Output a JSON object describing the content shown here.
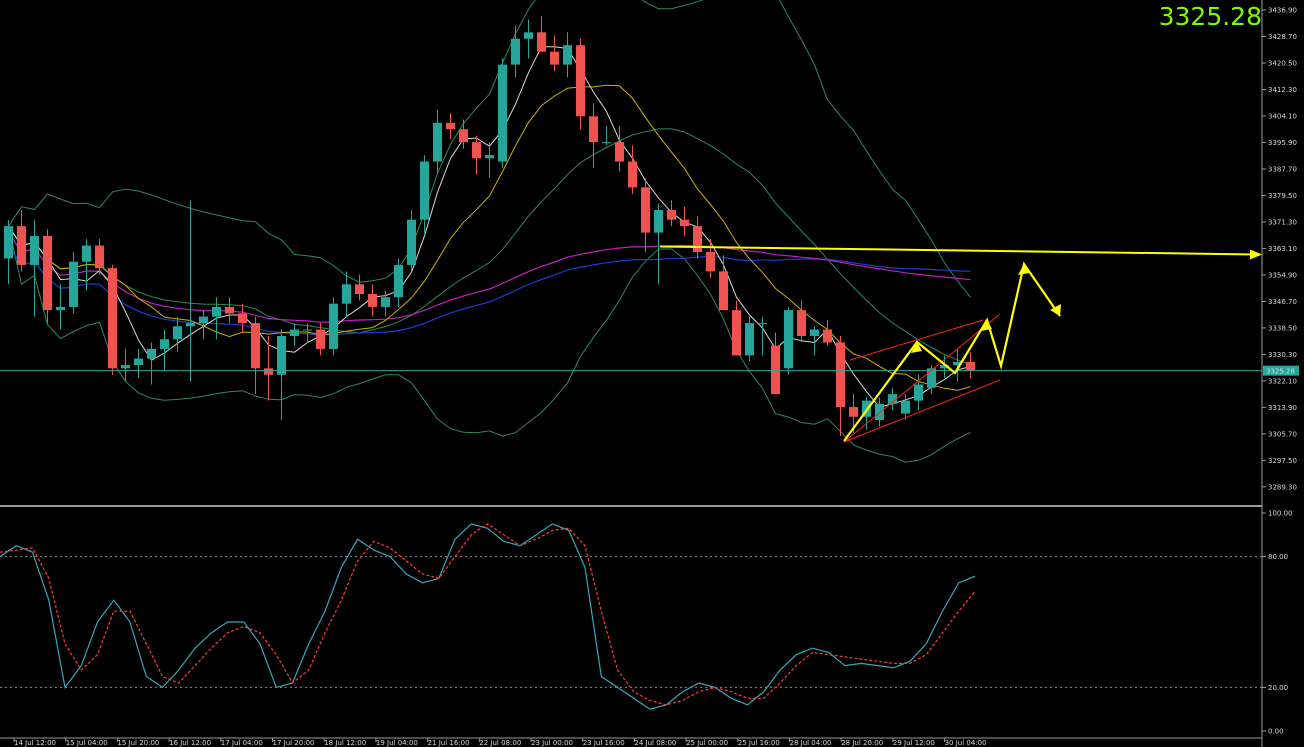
{
  "current_price": "3325.28",
  "price_tag": "3325.28",
  "chart_data": [
    {
      "type": "candlestick",
      "title": "",
      "y_ticks": [
        "3436.90",
        "3428.70",
        "3420.50",
        "3412.30",
        "3404.10",
        "3395.90",
        "3387.70",
        "3379.50",
        "3371.30",
        "3363.10",
        "3354.90",
        "3346.70",
        "3338.50",
        "3330.30",
        "3322.10",
        "3313.90",
        "3305.70",
        "3297.50",
        "3289.30"
      ],
      "ylim": [
        3284.0,
        3440.0
      ],
      "x_ticks": [
        "14 Jul 12:00",
        "15 Jul 04:00",
        "15 Jul 20:00",
        "16 Jul 12:00",
        "17 Jul 04:00",
        "17 Jul 20:00",
        "18 Jul 12:00",
        "19 Jul 04:00",
        "21 Jul 16:00",
        "22 Jul 08:00",
        "23 Jul 00:00",
        "23 Jul 16:00",
        "24 Jul 08:00",
        "25 Jul 00:00",
        "25 Jul 16:00",
        "28 Jul 04:00",
        "28 Jul 20:00",
        "29 Jul 12:00",
        "30 Jul 04:00"
      ],
      "candles": [
        [
          3360,
          3372,
          3352,
          3370
        ],
        [
          3370,
          3375,
          3356,
          3358
        ],
        [
          3358,
          3372,
          3342,
          3367
        ],
        [
          3367,
          3369,
          3340,
          3344
        ],
        [
          3344,
          3352,
          3338,
          3345
        ],
        [
          3345,
          3362,
          3343,
          3359
        ],
        [
          3359,
          3366,
          3350,
          3364
        ],
        [
          3364,
          3366,
          3355,
          3357
        ],
        [
          3357,
          3358,
          3324,
          3326
        ],
        [
          3326,
          3332,
          3322,
          3327
        ],
        [
          3327,
          3332,
          3323,
          3329
        ],
        [
          3329,
          3334,
          3321,
          3332
        ],
        [
          3332,
          3338,
          3325,
          3335
        ],
        [
          3335,
          3342,
          3331,
          3339
        ],
        [
          3339,
          3378,
          3322,
          3340
        ],
        [
          3340,
          3344,
          3335,
          3342
        ],
        [
          3342,
          3348,
          3335,
          3345
        ],
        [
          3345,
          3348,
          3340,
          3343
        ],
        [
          3343,
          3346,
          3337,
          3340
        ],
        [
          3340,
          3342,
          3318,
          3326
        ],
        [
          3326,
          3336,
          3316,
          3324
        ],
        [
          3324,
          3338,
          3310,
          3336
        ],
        [
          3336,
          3340,
          3333,
          3338
        ],
        [
          3338,
          3340,
          3334,
          3338
        ],
        [
          3338,
          3340,
          3330,
          3332
        ],
        [
          3332,
          3348,
          3330,
          3346
        ],
        [
          3346,
          3356,
          3342,
          3352
        ],
        [
          3352,
          3355,
          3347,
          3349
        ],
        [
          3349,
          3352,
          3342,
          3345
        ],
        [
          3345,
          3350,
          3342,
          3348
        ],
        [
          3348,
          3360,
          3345,
          3358
        ],
        [
          3358,
          3375,
          3356,
          3372
        ],
        [
          3372,
          3392,
          3368,
          3390
        ],
        [
          3390,
          3406,
          3386,
          3402
        ],
        [
          3402,
          3405,
          3397,
          3400
        ],
        [
          3400,
          3403,
          3394,
          3396
        ],
        [
          3396,
          3398,
          3386,
          3391
        ],
        [
          3391,
          3396,
          3385,
          3392
        ],
        [
          3390,
          3422,
          3388,
          3420
        ],
        [
          3420,
          3432,
          3416,
          3428
        ],
        [
          3428,
          3434,
          3422,
          3430
        ],
        [
          3430,
          3435,
          3424,
          3424
        ],
        [
          3424,
          3429,
          3418,
          3420
        ],
        [
          3420,
          3430,
          3416,
          3426
        ],
        [
          3426,
          3428,
          3400,
          3404
        ],
        [
          3404,
          3408,
          3388,
          3396
        ],
        [
          3396,
          3401,
          3395,
          3396
        ],
        [
          3396,
          3401,
          3387,
          3390
        ],
        [
          3390,
          3395,
          3380,
          3382
        ],
        [
          3382,
          3385,
          3362,
          3368
        ],
        [
          3368,
          3377,
          3352,
          3375
        ],
        [
          3375,
          3378,
          3370,
          3372
        ],
        [
          3372,
          3376,
          3367,
          3370
        ],
        [
          3370,
          3373,
          3360,
          3362
        ],
        [
          3362,
          3366,
          3354,
          3356
        ],
        [
          3356,
          3361,
          3345,
          3344
        ],
        [
          3344,
          3347,
          3330,
          3330
        ],
        [
          3330,
          3342,
          3328,
          3340
        ],
        [
          3340,
          3342,
          3330,
          3340
        ],
        [
          3333,
          3337,
          3318,
          3318
        ],
        [
          3326,
          3345,
          3324,
          3344
        ],
        [
          3344,
          3347,
          3334,
          3336
        ],
        [
          3336,
          3339,
          3330,
          3338
        ],
        [
          3338,
          3341,
          3333,
          3334
        ],
        [
          3334,
          3336,
          3305,
          3314
        ],
        [
          3314,
          3318,
          3306,
          3311
        ],
        [
          3311,
          3317,
          3307,
          3316
        ],
        [
          3310,
          3317,
          3308,
          3315
        ],
        [
          3315,
          3320,
          3313,
          3318
        ],
        [
          3312,
          3318,
          3310,
          3316
        ],
        [
          3316,
          3324,
          3313,
          3321
        ],
        [
          3320,
          3327,
          3318,
          3326
        ],
        [
          3326,
          3330,
          3323,
          3327
        ],
        [
          3327,
          3332,
          3322,
          3328
        ],
        [
          3328,
          3331,
          3323,
          3325.28
        ]
      ],
      "current_price_line": 3325.28,
      "horizontal_level": 3363.1,
      "overlays": [
        "Moving averages",
        "Bollinger Bands"
      ],
      "annotations": {
        "channel": "red ascending channel",
        "projection": "yellow zig-zag arrows"
      },
      "grid": false,
      "background": "#000000",
      "bull_color": "#26a69a",
      "bear_color": "#ef5350"
    },
    {
      "type": "line",
      "title": "",
      "y_ticks": [
        "100.00",
        "80.00",
        "20.00",
        "0.00"
      ],
      "ylim": [
        0,
        100
      ],
      "levels": [
        80,
        20
      ],
      "series": [
        {
          "color": "#3aa6b9",
          "values": [
            80,
            85,
            82,
            60,
            20,
            30,
            50,
            60,
            50,
            25,
            20,
            28,
            38,
            45,
            50,
            50,
            40,
            20,
            22,
            40,
            55,
            75,
            88,
            83,
            80,
            72,
            68,
            70,
            88,
            95,
            93,
            87,
            85,
            90,
            95,
            92,
            75,
            25,
            20,
            15,
            10,
            12,
            18,
            22,
            20,
            15,
            12,
            18,
            28,
            35,
            38,
            36,
            30,
            31,
            30,
            29,
            32,
            40,
            55,
            68,
            71
          ]
        },
        {
          "color": "#ff3b3b",
          "dash": true,
          "values": [
            82,
            83,
            84,
            70,
            40,
            28,
            35,
            55,
            55,
            40,
            25,
            22,
            30,
            38,
            45,
            48,
            45,
            35,
            22,
            28,
            45,
            60,
            78,
            87,
            84,
            78,
            72,
            70,
            80,
            90,
            95,
            90,
            85,
            88,
            92,
            93,
            85,
            55,
            28,
            18,
            14,
            12,
            14,
            18,
            20,
            18,
            15,
            15,
            22,
            30,
            36,
            35,
            34,
            33,
            32,
            31,
            31,
            35,
            45,
            55,
            64
          ]
        }
      ]
    }
  ]
}
